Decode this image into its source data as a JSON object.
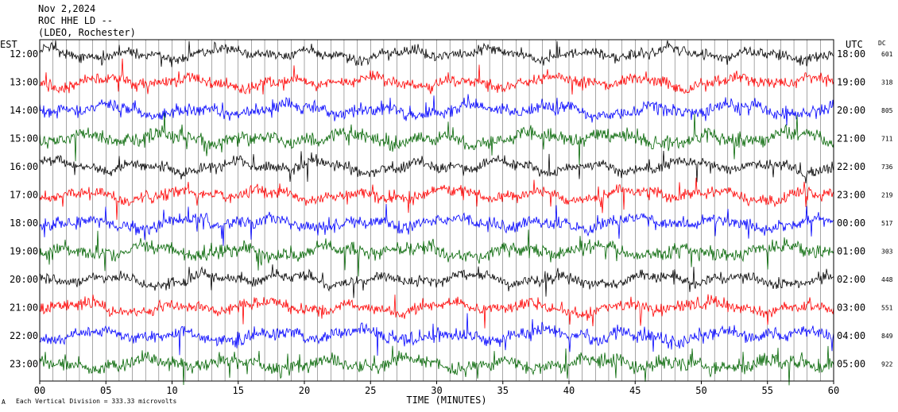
{
  "header": {
    "line1": "Nov 2,2024",
    "line2": "ROC HHE LD --",
    "line3": "(LDEO, Rochester)"
  },
  "left_axis_title": "EST",
  "right_axis_title": "UTC",
  "dc_title": "DC",
  "x_axis_title": "TIME (MINUTES)",
  "footer_note": "Each Vertical Division =  333.33 microvolts",
  "footer_mark": "A",
  "colors": {
    "black": "#000000",
    "red": "#ff0000",
    "blue": "#0000ff",
    "green": "#006400",
    "grid": "#000000"
  },
  "chart_data": {
    "type": "line",
    "subtype": "helicorder",
    "x": {
      "label": "TIME (MINUTES)",
      "lim": [
        0,
        60
      ],
      "ticks": [
        "00",
        "05",
        "10",
        "15",
        "20",
        "25",
        "30",
        "35",
        "40",
        "45",
        "50",
        "55",
        "60"
      ]
    },
    "rows": [
      {
        "est": "12:00",
        "utc": "18:00",
        "dc": "601",
        "color": "black"
      },
      {
        "est": "13:00",
        "utc": "19:00",
        "dc": "318",
        "color": "red"
      },
      {
        "est": "14:00",
        "utc": "20:00",
        "dc": "805",
        "color": "blue"
      },
      {
        "est": "15:00",
        "utc": "21:00",
        "dc": "711",
        "color": "green"
      },
      {
        "est": "16:00",
        "utc": "22:00",
        "dc": "736",
        "color": "black"
      },
      {
        "est": "17:00",
        "utc": "23:00",
        "dc": "219",
        "color": "red"
      },
      {
        "est": "18:00",
        "utc": "00:00",
        "dc": "517",
        "color": "blue"
      },
      {
        "est": "19:00",
        "utc": "01:00",
        "dc": "303",
        "color": "green"
      },
      {
        "est": "20:00",
        "utc": "02:00",
        "dc": "448",
        "color": "black"
      },
      {
        "est": "21:00",
        "utc": "03:00",
        "dc": "551",
        "color": "red"
      },
      {
        "est": "22:00",
        "utc": "04:00",
        "dc": "849",
        "color": "blue"
      },
      {
        "est": "23:00",
        "utc": "05:00",
        "dc": "922",
        "color": "green"
      }
    ],
    "vertical_division_microvolts": 333.33,
    "grid": true
  }
}
